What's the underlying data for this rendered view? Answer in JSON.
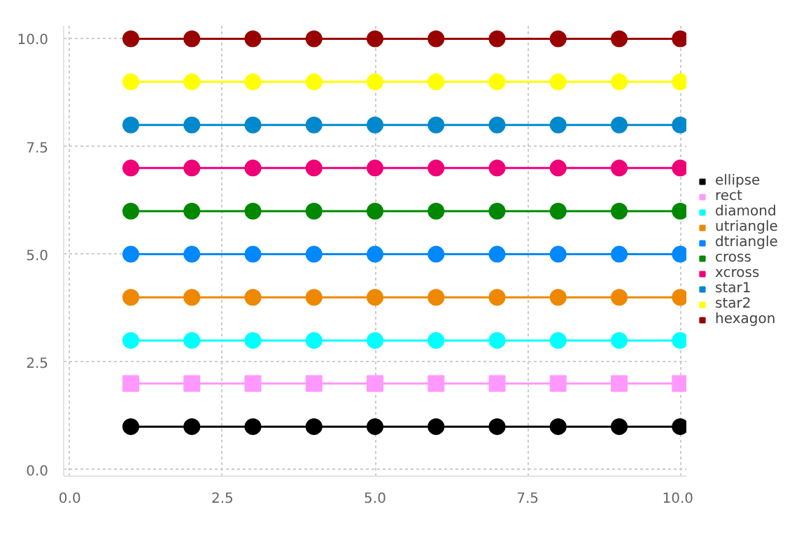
{
  "chart_data": {
    "type": "line",
    "x": [
      1,
      2,
      3,
      4,
      5,
      6,
      7,
      8,
      9,
      10
    ],
    "xlim": [
      -0.1,
      10.1
    ],
    "ylim": [
      -0.15,
      10.3
    ],
    "xticks": [
      {
        "value": 0,
        "label": "0.0"
      },
      {
        "value": 2.5,
        "label": "2.5"
      },
      {
        "value": 5,
        "label": "5.0"
      },
      {
        "value": 7.5,
        "label": "7.5"
      },
      {
        "value": 10,
        "label": "10.0"
      }
    ],
    "yticks": [
      {
        "value": 0,
        "label": "0.0"
      },
      {
        "value": 2.5,
        "label": "2.5"
      },
      {
        "value": 5,
        "label": "5.0"
      },
      {
        "value": 7.5,
        "label": "7.5"
      },
      {
        "value": 10,
        "label": "10.0"
      }
    ],
    "grid": true,
    "legend": "right",
    "line_style": "solid",
    "series": [
      {
        "name": "ellipse",
        "color": "#000000",
        "marker": "circle",
        "values": [
          1,
          1,
          1,
          1,
          1,
          1,
          1,
          1,
          1,
          1
        ]
      },
      {
        "name": "rect",
        "color": "#ff99ff",
        "marker": "square",
        "values": [
          2,
          2,
          2,
          2,
          2,
          2,
          2,
          2,
          2,
          2
        ]
      },
      {
        "name": "diamond",
        "color": "#00ffff",
        "marker": "circle",
        "values": [
          3,
          3,
          3,
          3,
          3,
          3,
          3,
          3,
          3,
          3
        ]
      },
      {
        "name": "utriangle",
        "color": "#ee8800",
        "marker": "circle",
        "values": [
          4,
          4,
          4,
          4,
          4,
          4,
          4,
          4,
          4,
          4
        ]
      },
      {
        "name": "dtriangle",
        "color": "#0088ff",
        "marker": "circle",
        "values": [
          5,
          5,
          5,
          5,
          5,
          5,
          5,
          5,
          5,
          5
        ]
      },
      {
        "name": "cross",
        "color": "#008800",
        "marker": "circle",
        "values": [
          6,
          6,
          6,
          6,
          6,
          6,
          6,
          6,
          6,
          6
        ]
      },
      {
        "name": "xcross",
        "color": "#ee0077",
        "marker": "circle",
        "values": [
          7,
          7,
          7,
          7,
          7,
          7,
          7,
          7,
          7,
          7
        ]
      },
      {
        "name": "star1",
        "color": "#0088cc",
        "marker": "circle",
        "values": [
          8,
          8,
          8,
          8,
          8,
          8,
          8,
          8,
          8,
          8
        ]
      },
      {
        "name": "star2",
        "color": "#ffff00",
        "marker": "circle",
        "values": [
          9,
          9,
          9,
          9,
          9,
          9,
          9,
          9,
          9,
          9
        ]
      },
      {
        "name": "hexagon",
        "color": "#990000",
        "marker": "circle",
        "values": [
          10,
          10,
          10,
          10,
          10,
          10,
          10,
          10,
          10,
          10
        ]
      }
    ]
  }
}
